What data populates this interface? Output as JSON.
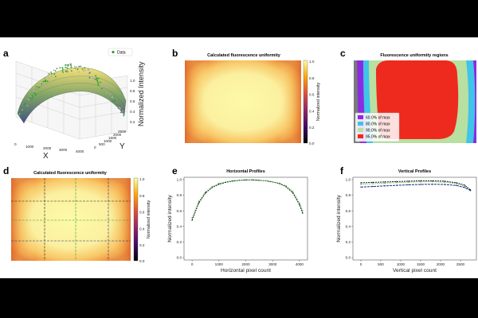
{
  "panels": {
    "a": {
      "letter": "a",
      "legend": "Data",
      "xlabel": "X",
      "ylabel": "Y",
      "zlabel": "Normalized Intensity",
      "x_ticks": [
        "0",
        "1000",
        "2000",
        "3000",
        "4000"
      ],
      "y_ticks": [
        "0",
        "500",
        "1000",
        "1500",
        "2000",
        "2500"
      ],
      "z_ticks": [
        "0.2",
        "0.4",
        "0.6",
        "0.8",
        "1.0"
      ]
    },
    "b": {
      "letter": "b",
      "title": "Calculated fluorescence uniformity",
      "colorbar_label": "Normalized intensity",
      "colorbar_ticks": [
        "1.0",
        "0.8",
        "0.6",
        "0.4",
        "0.2",
        "0.0"
      ]
    },
    "c": {
      "letter": "c",
      "title": "Fluorescence uniformity regions",
      "legend": [
        "60.0% of max",
        "80.0% of max",
        "90.0% of max",
        "95.0% of max"
      ]
    },
    "d": {
      "letter": "d",
      "title": "Calculated fluorescence uniformity",
      "colorbar_label": "Normalized intensity",
      "colorbar_ticks": [
        "1.0",
        "0.8",
        "0.6",
        "0.4",
        "0.2",
        "0.0"
      ]
    },
    "e": {
      "letter": "e"
    },
    "f": {
      "letter": "f"
    }
  },
  "colors": {
    "inferno": [
      "#000004",
      "#420a68",
      "#932667",
      "#dd513a",
      "#fca50a",
      "#fcffa4"
    ],
    "region_60": "#8a2be2",
    "region_80": "#40c4e8",
    "region_90": "#b8e0a0",
    "region_95": "#ee2a1e",
    "profile_line_1": "#1a1a1a",
    "profile_line_2": "#2ca02c",
    "profile_line_3": "#1a2a7a"
  },
  "chart_data": [
    {
      "type": "line",
      "title": "Horizontal Profiles",
      "xlabel": "Horizontal pixel count",
      "ylabel": "Normalized intensity",
      "x_ticks": [
        0,
        1000,
        2000,
        3000,
        4000
      ],
      "y_ticks": [
        0.0,
        0.2,
        0.4,
        0.6,
        0.8,
        1.0
      ],
      "xlim": [
        -300,
        4300
      ],
      "ylim": [
        -0.03,
        1.03
      ],
      "x": [
        0,
        250,
        500,
        750,
        1000,
        1250,
        1500,
        1750,
        2000,
        2250,
        2500,
        2750,
        3000,
        3250,
        3500,
        3750,
        4000,
        4120
      ],
      "series": [
        {
          "values": [
            0.48,
            0.7,
            0.83,
            0.9,
            0.94,
            0.965,
            0.98,
            0.99,
            0.995,
            0.995,
            0.99,
            0.985,
            0.97,
            0.95,
            0.91,
            0.83,
            0.68,
            0.57
          ]
        },
        {
          "values": [
            0.51,
            0.72,
            0.84,
            0.91,
            0.95,
            0.97,
            0.985,
            0.993,
            0.997,
            0.997,
            0.993,
            0.985,
            0.972,
            0.955,
            0.92,
            0.85,
            0.7,
            0.6
          ]
        }
      ]
    },
    {
      "type": "line",
      "title": "Vertical Profiles",
      "xlabel": "Vertical pixel count",
      "ylabel": "Normalized intensity",
      "x_ticks": [
        0,
        500,
        1000,
        1500,
        2000,
        2500
      ],
      "y_ticks": [
        0.0,
        0.2,
        0.4,
        0.6,
        0.8,
        1.0
      ],
      "xlim": [
        -200,
        2900
      ],
      "ylim": [
        -0.03,
        1.03
      ],
      "x": [
        0,
        300,
        600,
        900,
        1200,
        1500,
        1800,
        2100,
        2400,
        2600,
        2750
      ],
      "series": [
        {
          "values": [
            0.96,
            0.965,
            0.97,
            0.975,
            0.98,
            0.985,
            0.985,
            0.98,
            0.96,
            0.93,
            0.87
          ]
        },
        {
          "values": [
            0.94,
            0.948,
            0.955,
            0.962,
            0.968,
            0.972,
            0.973,
            0.968,
            0.948,
            0.915,
            0.86
          ]
        },
        {
          "values": [
            0.905,
            0.912,
            0.92,
            0.927,
            0.933,
            0.938,
            0.94,
            0.937,
            0.925,
            0.9,
            0.86
          ]
        }
      ]
    }
  ]
}
